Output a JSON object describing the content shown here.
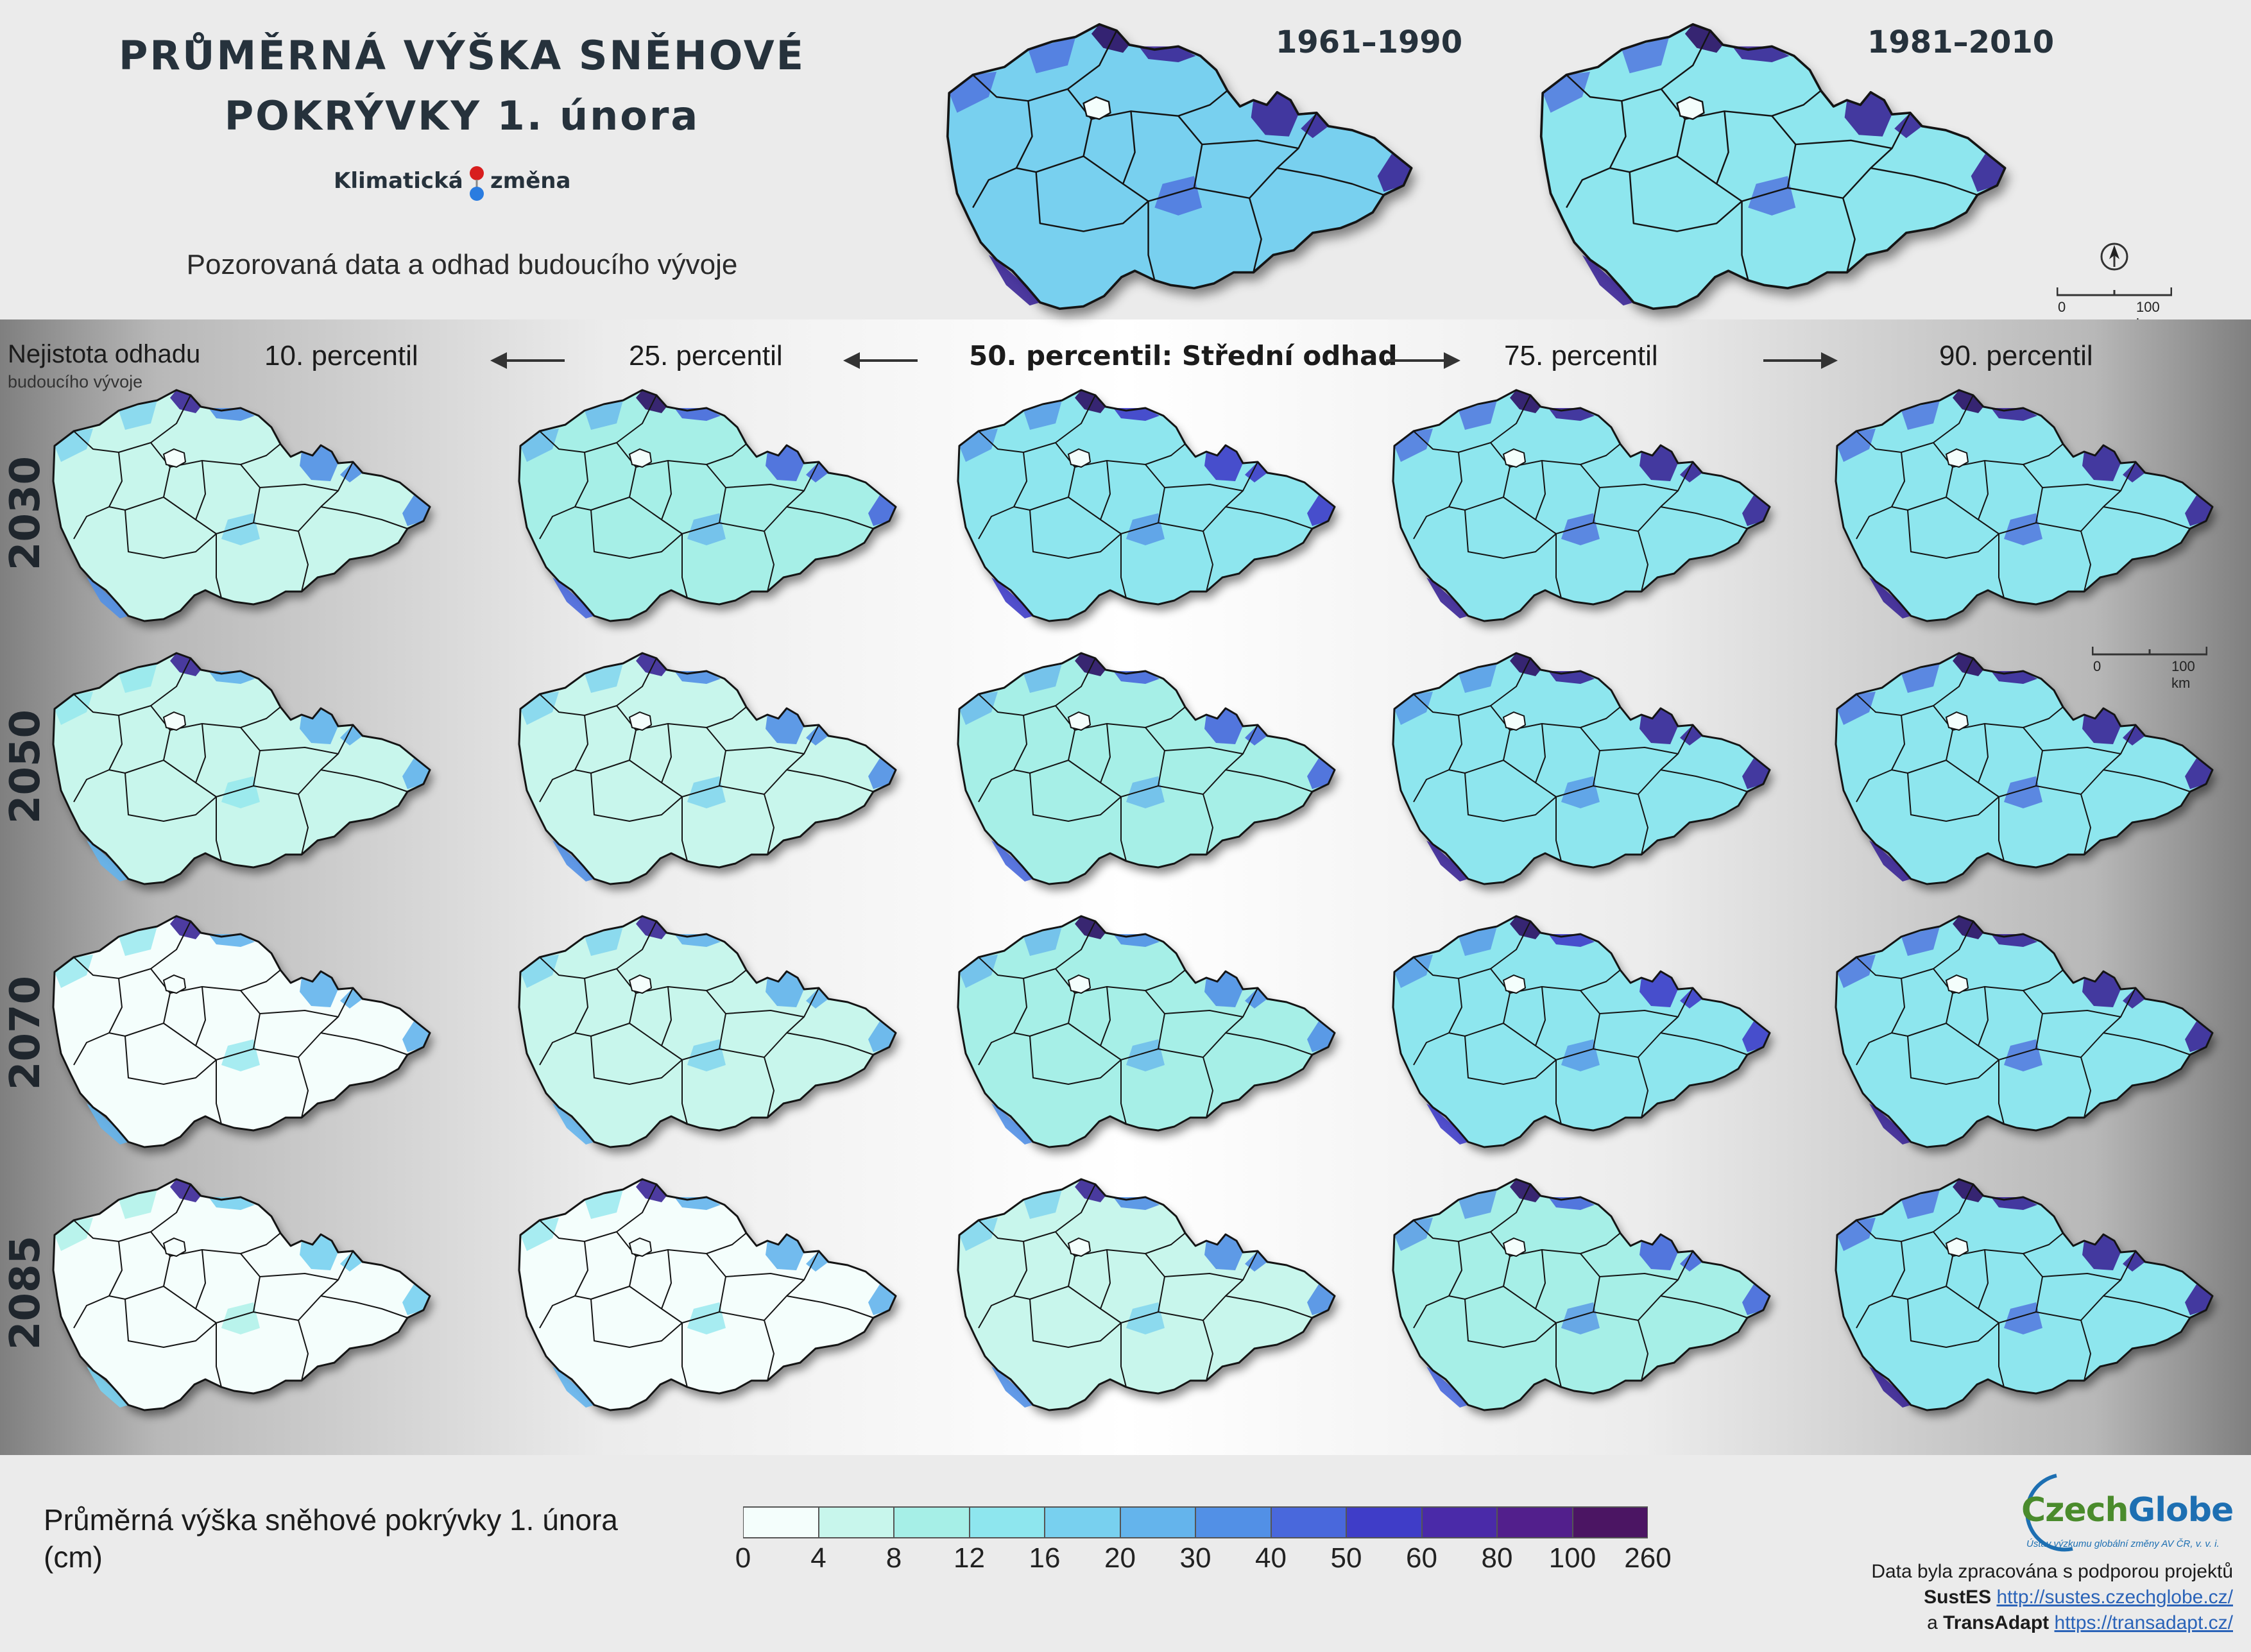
{
  "header": {
    "title_line1": "PRŮMĚRNÁ VÝŠKA SNĚHOVÉ",
    "title_line2": "POKRÝVKY 1. února",
    "logo_word1": "Klimatická",
    "logo_word2": "změna",
    "subtitle": "Pozorovaná data a odhad budoucího vývoje",
    "periods": [
      "1961–1990",
      "1981–2010"
    ]
  },
  "grid": {
    "uncertainty_title": "Nejistota odhadu",
    "uncertainty_subtitle": "budoucího vývoje",
    "percentiles": [
      "10. percentil",
      "25. percentil",
      "50. percentil: Střední odhad",
      "75. percentil",
      "90. percentil"
    ],
    "years": [
      "2030",
      "2050",
      "2070",
      "2085"
    ]
  },
  "scalebar": {
    "zero": "0",
    "length": "100 km"
  },
  "legend": {
    "title_line1": "Průměrná výška sněhové pokrývky 1. února",
    "title_line2": "(cm)",
    "ticks": [
      "0",
      "4",
      "8",
      "12",
      "16",
      "20",
      "30",
      "40",
      "50",
      "60",
      "80",
      "100",
      "260"
    ],
    "colors": [
      "#f4fefc",
      "#c8f6ec",
      "#a6efe7",
      "#8ee6ee",
      "#78d0ef",
      "#64b4ec",
      "#5290e6",
      "#4968dc",
      "#3f3dc8",
      "#4a2aa8",
      "#521f8c",
      "#4b1563"
    ]
  },
  "map_palette": {
    "outline": "#141414",
    "heavy_snow": "#3b2696",
    "extreme_snow": "#2c0f64"
  },
  "credits": {
    "org_name_part1": "Czech",
    "org_name_part2": "Globe",
    "org_subtitle": "Ústav výzkumu globální změny AV ČR, v. v. i.",
    "line1": "Data byla zpracována s podporou projektů",
    "project1": "SustES",
    "url1": "http://sustes.czechglobe.cz/",
    "connector": "a",
    "project2": "TransAdapt",
    "url2": "https://transadapt.cz/"
  },
  "map_series": [
    {
      "row": "observed",
      "col": "1961–1990",
      "level": 0.72
    },
    {
      "row": "observed",
      "col": "1981–2010",
      "level": 0.66
    },
    {
      "row": "2030",
      "col": "10. percentil",
      "level": 0.28
    },
    {
      "row": "2030",
      "col": "25. percentil",
      "level": 0.38
    },
    {
      "row": "2030",
      "col": "50. percentil: Střední odhad",
      "level": 0.5
    },
    {
      "row": "2030",
      "col": "75. percentil",
      "level": 0.56
    },
    {
      "row": "2030",
      "col": "90. percentil",
      "level": 0.62
    },
    {
      "row": "2050",
      "col": "10. percentil",
      "level": 0.2
    },
    {
      "row": "2050",
      "col": "25. percentil",
      "level": 0.3
    },
    {
      "row": "2050",
      "col": "50. percentil: Střední odhad",
      "level": 0.44
    },
    {
      "row": "2050",
      "col": "75. percentil",
      "level": 0.52
    },
    {
      "row": "2050",
      "col": "90. percentil",
      "level": 0.58
    },
    {
      "row": "2070",
      "col": "10. percentil",
      "level": 0.16
    },
    {
      "row": "2070",
      "col": "25. percentil",
      "level": 0.24
    },
    {
      "row": "2070",
      "col": "50. percentil: Střední odhad",
      "level": 0.36
    },
    {
      "row": "2070",
      "col": "75. percentil",
      "level": 0.5
    },
    {
      "row": "2070",
      "col": "90. percentil",
      "level": 0.56
    },
    {
      "row": "2085",
      "col": "10. percentil",
      "level": 0.1
    },
    {
      "row": "2085",
      "col": "25. percentil",
      "level": 0.16
    },
    {
      "row": "2085",
      "col": "50. percentil: Střední odhad",
      "level": 0.26
    },
    {
      "row": "2085",
      "col": "75. percentil",
      "level": 0.46
    },
    {
      "row": "2085",
      "col": "90. percentil",
      "level": 0.58
    }
  ]
}
